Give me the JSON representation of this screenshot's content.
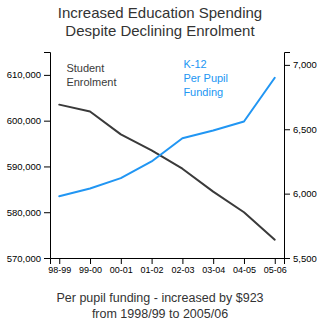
{
  "chart_data": {
    "type": "line",
    "title": "Increased Education Spending\nDespite Declining Enrolment",
    "subtitle": "Per pupil funding - increased by $923\nfrom 1998/99 to 2005/06",
    "categories": [
      "98-99",
      "99-00",
      "00-01",
      "01-02",
      "02-03",
      "03-04",
      "04-05",
      "05-06"
    ],
    "series": [
      {
        "name": "Student\nEnrolment",
        "color": "#3a3a3a",
        "values": [
          603500,
          602000,
          597000,
          593500,
          589500,
          584500,
          580000,
          574000
        ]
      },
      {
        "name": "K-12\nPer Pupil\nFunding",
        "color": "#2196F3",
        "axis": "y2",
        "values": [
          5980,
          6040,
          6120,
          6250,
          6430,
          6490,
          6560,
          6900
        ]
      }
    ],
    "ylim": [
      570000,
      615000
    ],
    "yticks": [
      {
        "value": 570000,
        "label": "570,000"
      },
      {
        "value": 580000,
        "label": "580,000"
      },
      {
        "value": 590000,
        "label": "590,000"
      },
      {
        "value": 600000,
        "label": "600,000"
      },
      {
        "value": 610000,
        "label": "610,000"
      }
    ],
    "y2lim": [
      5500,
      7100
    ],
    "y2ticks": [
      {
        "value": 5500,
        "label": "5,500"
      },
      {
        "value": 6000,
        "label": "6,000"
      },
      {
        "value": 6500,
        "label": "6,500"
      },
      {
        "value": 7000,
        "label": "7,000"
      }
    ],
    "grid": false
  }
}
